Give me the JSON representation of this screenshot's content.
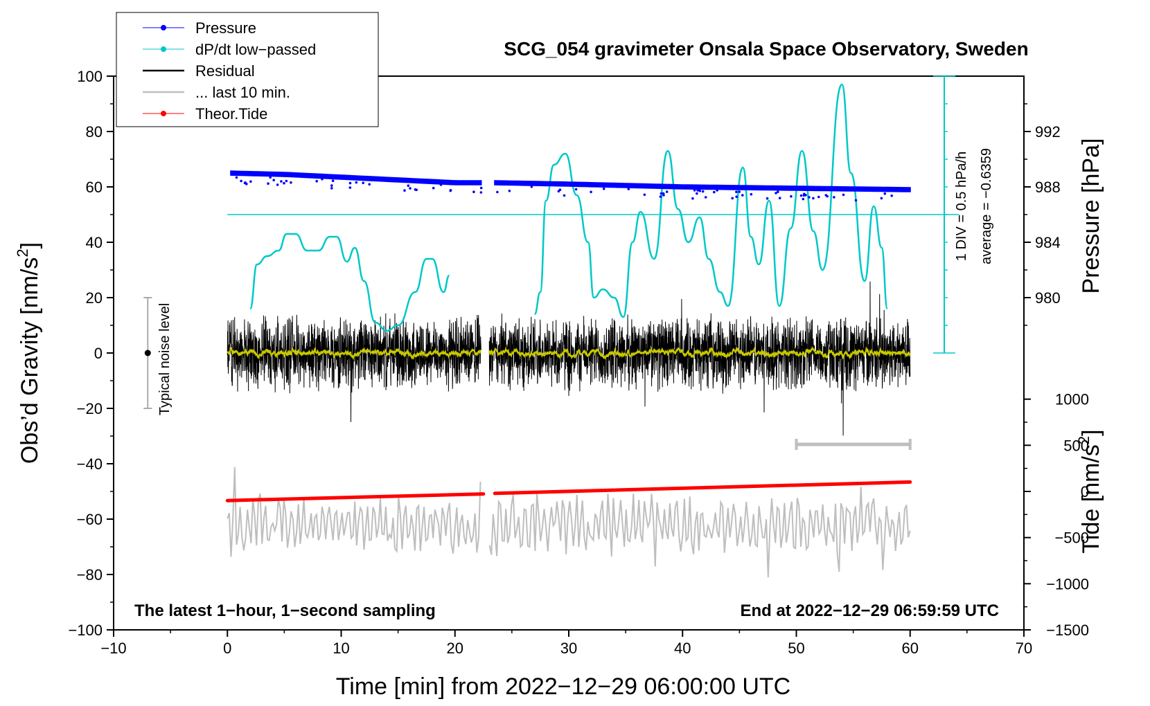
{
  "chart_data": {
    "type": "line",
    "title": "SCG_054 gravimeter Onsala Space Observatory, Sweden",
    "xlabel": "Time [min] from 2022−12−29 06:00:00 UTC",
    "ylabel_left": "Obs’d Gravity [nm/s",
    "ylabel_left_sup": "2",
    "ylabel_left_close": "]",
    "ylabel_right_pressure": "Pressure [hPa]",
    "ylabel_right_tide": "Tide [nm/s",
    "ylabel_right_tide_sup": "2",
    "ylabel_right_tide_close": "]",
    "xlim": [
      -10,
      70
    ],
    "ylim_left": [
      -100,
      100
    ],
    "x_ticks": [
      "−10",
      "0",
      "10",
      "20",
      "30",
      "40",
      "50",
      "60",
      "70"
    ],
    "x_tick_values": [
      -10,
      0,
      10,
      20,
      30,
      40,
      50,
      60,
      70
    ],
    "y_left_ticks": [
      "−100",
      "−80",
      "−60",
      "−40",
      "−20",
      "0",
      "20",
      "40",
      "60",
      "80",
      "100"
    ],
    "y_left_tick_values": [
      -100,
      -80,
      -60,
      -40,
      -20,
      0,
      20,
      40,
      60,
      80,
      100
    ],
    "pressure_axis": {
      "ticks": [
        "980",
        "984",
        "988",
        "992"
      ],
      "tick_values": [
        980,
        984,
        988,
        992
      ],
      "ref": {
        "pressure": 988,
        "gravity": 60
      },
      "hpa_per_gravity_unit": 0.2
    },
    "tide_axis": {
      "ticks": [
        "−1500",
        "−1000",
        "−500",
        "0",
        "500",
        "1000"
      ],
      "tick_values": [
        -1500,
        -1000,
        -500,
        0,
        500,
        1000
      ],
      "ref": {
        "tide": 0,
        "gravity": -50
      },
      "nm_per_gravity_unit": 30
    },
    "legend": [
      {
        "label": "Pressure",
        "color": "#0000ff",
        "style": "line-dot"
      },
      {
        "label": "dP/dt low−passed",
        "color": "#00c8c8",
        "style": "line-dot"
      },
      {
        "label": "Residual",
        "color": "#000000",
        "style": "line"
      },
      {
        "label": "... last 10 min.",
        "color": "#bebebe",
        "style": "line"
      },
      {
        "label": "Theor.Tide",
        "color": "#ff0000",
        "style": "line-dot"
      }
    ],
    "series": [
      {
        "name": "Pressure",
        "color": "#0000ff",
        "unit": "hPa",
        "x": [
          0,
          5,
          10,
          15,
          20,
          22.5,
          23.5,
          30,
          40,
          50,
          60
        ],
        "y": [
          989.0,
          988.9,
          988.7,
          988.5,
          988.3,
          988.3,
          988.3,
          988.2,
          988.0,
          987.9,
          987.8
        ]
      },
      {
        "name": "dP/dt low−passed",
        "color": "#00c8c8",
        "unit": "nm/s2",
        "x": [
          2.0,
          2.6,
          3.5,
          4.5,
          5.2,
          6.0,
          7.0,
          8.0,
          9.0,
          9.6,
          10.5,
          11.2,
          12.0,
          13.0,
          14.0,
          15.0,
          16.5,
          17.5,
          18.0,
          19.0,
          19.5,
          null,
          27.0,
          27.5,
          28.0,
          28.7,
          29.7,
          30.7,
          31.7,
          32.2,
          33.0,
          34.0,
          34.8,
          35.6,
          36.3,
          37.5,
          38.7,
          39.6,
          40.5,
          41.5,
          42.3,
          43.3,
          44.0,
          45.3,
          46.0,
          46.7,
          47.6,
          48.5,
          49.5,
          50.5,
          51.5,
          52.3,
          54.0,
          54.8,
          56.0,
          56.8,
          57.5,
          58.0
        ],
        "y": [
          16,
          32,
          35,
          37,
          43,
          43,
          37,
          37,
          42,
          42,
          33,
          38,
          26,
          11,
          8,
          10,
          22,
          34,
          34,
          22,
          28,
          null,
          14,
          22,
          55,
          68,
          72,
          57,
          40,
          20,
          23,
          20,
          13,
          40,
          51,
          34,
          73,
          52,
          40,
          49,
          34,
          22,
          17,
          67,
          42,
          32,
          55,
          17,
          45,
          73,
          44,
          30,
          97,
          65,
          26,
          53,
          38,
          16
        ]
      },
      {
        "name": "Residual",
        "color": "#000000",
        "unit": "nm/s2",
        "x_range": [
          0,
          60
        ],
        "gap": [
          22.3,
          23.0
        ],
        "envelope": 15,
        "mean_filter_color": "#c8c800"
      },
      {
        "name": "... last 10 min.",
        "color": "#bebebe",
        "unit": "nm/s2",
        "x_range": [
          0,
          60
        ],
        "center": -62,
        "envelope": 12
      },
      {
        "name": "Theor.Tide",
        "color": "#ff0000",
        "unit": "nm/s2",
        "x": [
          0,
          22.5,
          23.5,
          60
        ],
        "y": [
          -53.3,
          -50.9,
          -50.7,
          -46.6
        ]
      }
    ],
    "dpdt_scale": {
      "baseline_gravity": 50,
      "bar_x": 63.0,
      "bar_range": [
        0,
        100
      ],
      "text1": "1 DIV = 0.5 hPa/h",
      "text2": "average = −0.6359",
      "color": "#00c8c8"
    },
    "noise_level": {
      "x": -7,
      "center": 0,
      "low": -20,
      "high": 20,
      "label": "Typical noise level"
    },
    "last10_bar": {
      "x_start": 50,
      "x_end": 60,
      "y": -33
    },
    "annotation_left": "The latest 1−hour, 1−second sampling",
    "annotation_right": "End at 2022−12−29 06:59:59 UTC"
  }
}
